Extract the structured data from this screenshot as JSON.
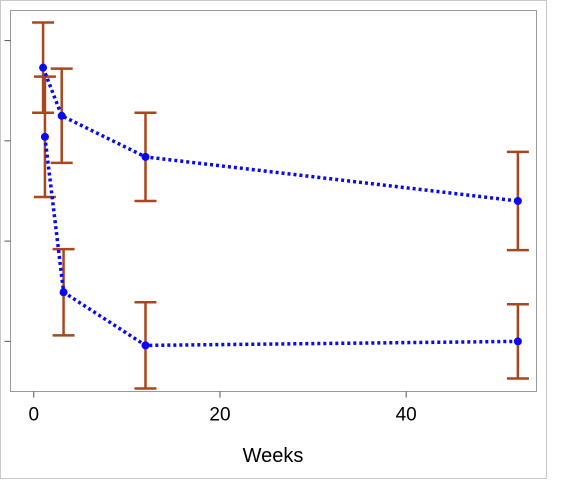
{
  "chart_data": {
    "type": "line",
    "title": "",
    "xlabel": "Weeks",
    "ylabel": "",
    "xlim": [
      -2.5,
      54
    ],
    "ylim": [
      0.0,
      3.8
    ],
    "x_ticks": [
      0,
      20,
      40
    ],
    "x_tick_labels": [
      "0",
      "20",
      "40"
    ],
    "y_ticks": [
      0.5,
      1.5,
      2.5,
      3.5
    ],
    "y_tick_labels": [
      "",
      "",
      "",
      ""
    ],
    "grid": false,
    "legend": "none",
    "series": [
      {
        "x": [
          1,
          3,
          12,
          52
        ],
        "y": [
          3.23,
          2.75,
          2.34,
          1.9
        ],
        "yerr_low": [
          2.78,
          2.28,
          1.9,
          1.41
        ],
        "yerr_high": [
          3.68,
          3.22,
          2.78,
          2.39
        ]
      },
      {
        "x": [
          1.2,
          3.2,
          12,
          52
        ],
        "y": [
          2.54,
          0.99,
          0.46,
          0.5
        ],
        "yerr_low": [
          1.94,
          0.56,
          0.03,
          0.13
        ],
        "yerr_high": [
          3.14,
          1.42,
          0.89,
          0.87
        ]
      }
    ],
    "colors": {
      "line": "#0a0aee",
      "marker": "#0a0aee",
      "error_bar": "#a8471f",
      "frame": "#9a9a9a",
      "background": "#ffffff"
    }
  }
}
